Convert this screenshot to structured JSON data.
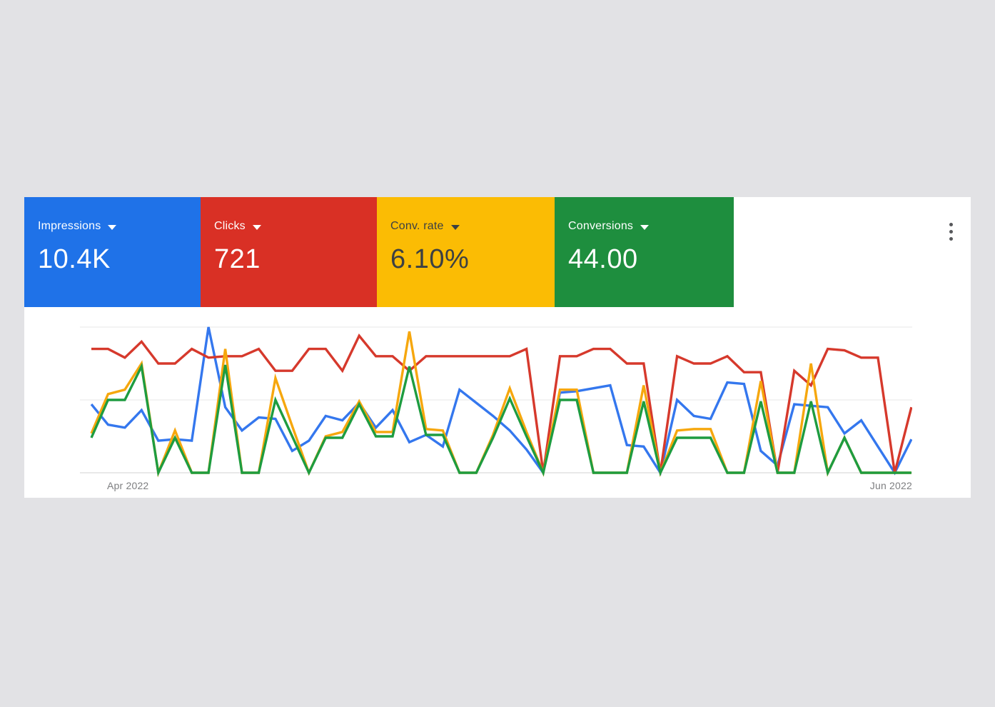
{
  "page": {
    "background": "#e2e2e5",
    "panel_background": "#ffffff"
  },
  "cards": [
    {
      "label": "Impressions",
      "value": "10.4K",
      "background": "#1f72e8",
      "text_color": "#ffffff"
    },
    {
      "label": "Clicks",
      "value": "721",
      "background": "#d93025",
      "text_color": "#ffffff"
    },
    {
      "label": "Conv. rate",
      "value": "6.10%",
      "background": "#fbbc04",
      "text_color": "#3c4043"
    },
    {
      "label": "Conversions",
      "value": "44.00",
      "background": "#1e8e3e",
      "text_color": "#ffffff"
    }
  ],
  "menu": {
    "icon": "kebab-menu-icon"
  },
  "chart_data": {
    "type": "line",
    "title": "",
    "xlabel": "",
    "ylabel": "",
    "x_axis": {
      "start_label": "Apr 2022",
      "end_label": "Jun 2022",
      "points": 50
    },
    "ylim": [
      0,
      100
    ],
    "gridlines": [
      0,
      50,
      100
    ],
    "grid": "on",
    "legend_position": "none",
    "series": [
      {
        "name": "Impressions",
        "id": "impressions-line",
        "color": "#3477ee",
        "values": [
          47,
          33,
          31,
          43,
          22,
          23,
          22,
          100,
          45,
          29,
          38,
          37,
          15,
          22,
          39,
          36,
          48,
          31,
          43,
          21,
          26,
          18,
          57,
          48,
          39,
          29,
          16,
          0,
          55,
          56,
          58,
          60,
          19,
          18,
          0,
          50,
          39,
          37,
          62,
          61,
          15,
          5,
          47,
          46,
          45,
          27,
          36,
          18,
          0,
          23
        ]
      },
      {
        "name": "Clicks",
        "id": "clicks-line",
        "color": "#d6392c",
        "values": [
          85,
          85,
          79,
          90,
          75,
          75,
          85,
          79,
          80,
          80,
          85,
          70,
          70,
          85,
          85,
          70,
          94,
          80,
          80,
          70,
          80,
          80,
          80,
          80,
          80,
          80,
          85,
          0,
          80,
          80,
          85,
          85,
          75,
          75,
          0,
          80,
          75,
          75,
          80,
          69,
          69,
          0,
          70,
          60,
          85,
          84,
          79,
          79,
          0,
          45
        ]
      },
      {
        "name": "Conv. rate",
        "id": "conv-rate-line",
        "color": "#f6a70d",
        "values": [
          27,
          54,
          57,
          75,
          0,
          29,
          0,
          0,
          85,
          0,
          0,
          65,
          32,
          0,
          25,
          28,
          49,
          28,
          28,
          97,
          30,
          29,
          0,
          0,
          26,
          58,
          28,
          0,
          57,
          57,
          0,
          0,
          0,
          60,
          0,
          29,
          30,
          30,
          0,
          0,
          63,
          0,
          0,
          75,
          0,
          24,
          0,
          0,
          0,
          0
        ]
      },
      {
        "name": "Conversions",
        "id": "conversions-line",
        "color": "#1e9c40",
        "values": [
          24,
          50,
          50,
          73,
          0,
          24,
          0,
          0,
          74,
          0,
          0,
          50,
          25,
          0,
          24,
          24,
          47,
          25,
          25,
          73,
          26,
          26,
          0,
          0,
          24,
          51,
          25,
          0,
          50,
          50,
          0,
          0,
          0,
          49,
          0,
          24,
          24,
          24,
          0,
          0,
          49,
          0,
          0,
          49,
          0,
          24,
          0,
          0,
          0,
          0
        ]
      }
    ]
  }
}
